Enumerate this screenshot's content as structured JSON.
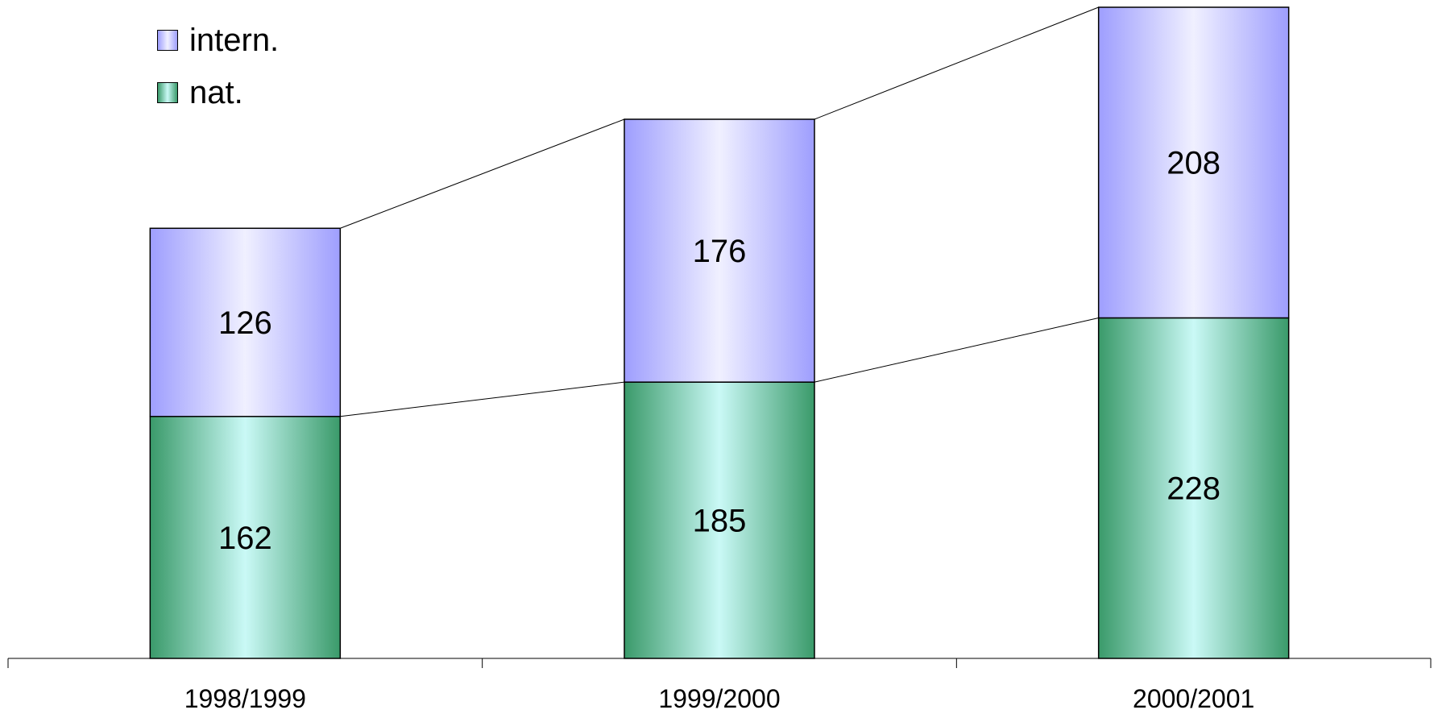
{
  "chart_data": {
    "type": "bar",
    "stacked": true,
    "categories": [
      "1998/1999",
      "1999/2000",
      "2000/2001"
    ],
    "series": [
      {
        "name": "nat.",
        "values": [
          162,
          185,
          228
        ],
        "color": "#3a9a6a",
        "highlight": "#caf9f6"
      },
      {
        "name": "intern.",
        "values": [
          126,
          176,
          208
        ],
        "color": "#9e9efe",
        "highlight": "#f0f0ff"
      }
    ],
    "ylim": [
      0,
      436
    ],
    "grid": false,
    "legend": "top-left",
    "series_lines": true,
    "legend_order": [
      "intern.",
      "nat."
    ]
  }
}
